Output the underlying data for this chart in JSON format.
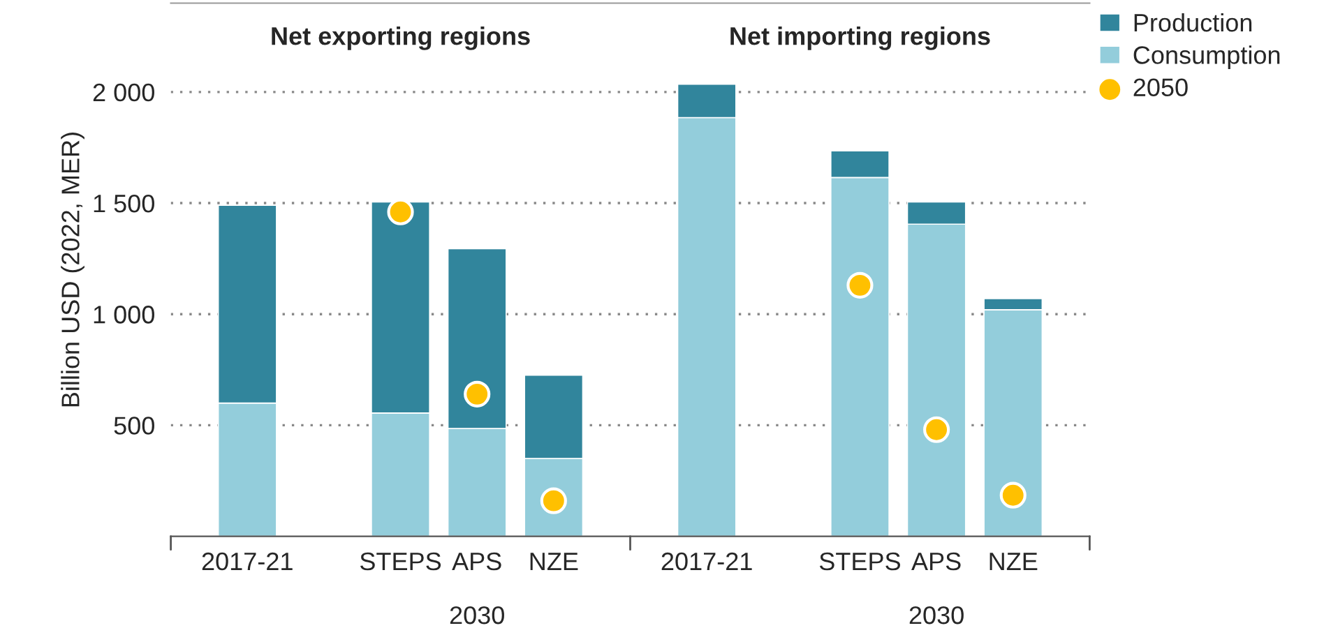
{
  "chart_data": {
    "type": "bar",
    "stacked": true,
    "categories": [
      "2017-21",
      null,
      "STEPS",
      "APS",
      "NZE",
      null,
      "2017-21",
      null,
      "STEPS",
      "APS",
      "NZE"
    ],
    "series": [
      {
        "name": "Consumption",
        "color": "#93cddb",
        "values": [
          600,
          null,
          555,
          485,
          350,
          null,
          1885,
          null,
          1615,
          1405,
          1020
        ]
      },
      {
        "name": "Production",
        "color": "#31859c",
        "values": [
          890,
          null,
          950,
          810,
          375,
          null,
          150,
          null,
          120,
          100,
          50
        ]
      },
      {
        "name": "2050",
        "type": "scatter",
        "color": "#ffc000",
        "values": [
          null,
          null,
          1460,
          640,
          160,
          null,
          null,
          null,
          1130,
          480,
          185
        ]
      }
    ],
    "ylabel": "Billion USD (2022, MER)",
    "ylim": [
      0,
      2400
    ],
    "yticks": [
      {
        "value": 500,
        "label": "500"
      },
      {
        "value": 1000,
        "label": "1 000"
      },
      {
        "value": 1500,
        "label": "1 500"
      },
      {
        "value": 2000,
        "label": "2 000"
      }
    ],
    "grid": "y",
    "legend": "right",
    "marker": "circle",
    "annotations": [
      "Net exporting regions",
      "Net importing regions",
      "2030",
      "2030"
    ]
  }
}
